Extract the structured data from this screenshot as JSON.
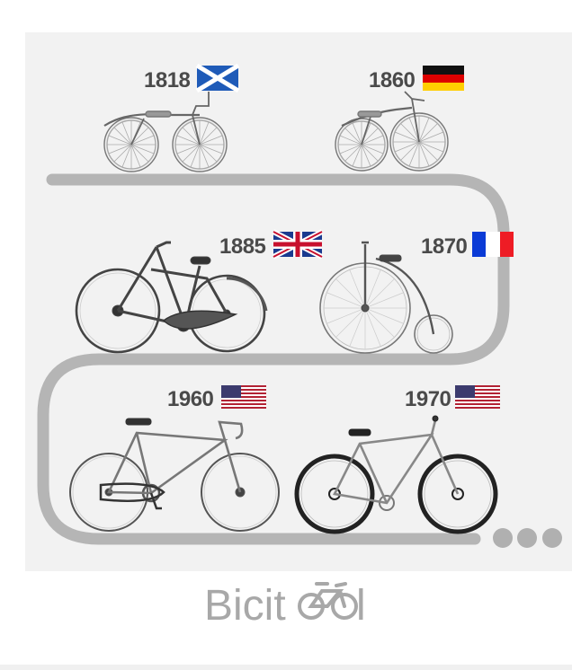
{
  "brand": {
    "prefix": "Bicit",
    "icon": "bicycle-icon",
    "suffix": "l"
  },
  "colors": {
    "track": "#b5b5b5",
    "dots": "#b0b0b0",
    "text": "#4a4a4a",
    "panel": "#f2f2f2"
  },
  "milestones": [
    {
      "year": "1818",
      "flag": "scotland-flag-icon",
      "bike": "draisine-bike-icon"
    },
    {
      "year": "1860",
      "flag": "germany-flag-icon",
      "bike": "velocipede-bike-icon"
    },
    {
      "year": "1885",
      "flag": "uk-flag-icon",
      "bike": "safety-bike-icon"
    },
    {
      "year": "1870",
      "flag": "france-flag-icon",
      "bike": "penny-farthing-bike-icon"
    },
    {
      "year": "1960",
      "flag": "usa-flag-icon",
      "bike": "road-bike-icon"
    },
    {
      "year": "1970",
      "flag": "usa-flag-icon",
      "bike": "mountain-bike-icon"
    }
  ]
}
